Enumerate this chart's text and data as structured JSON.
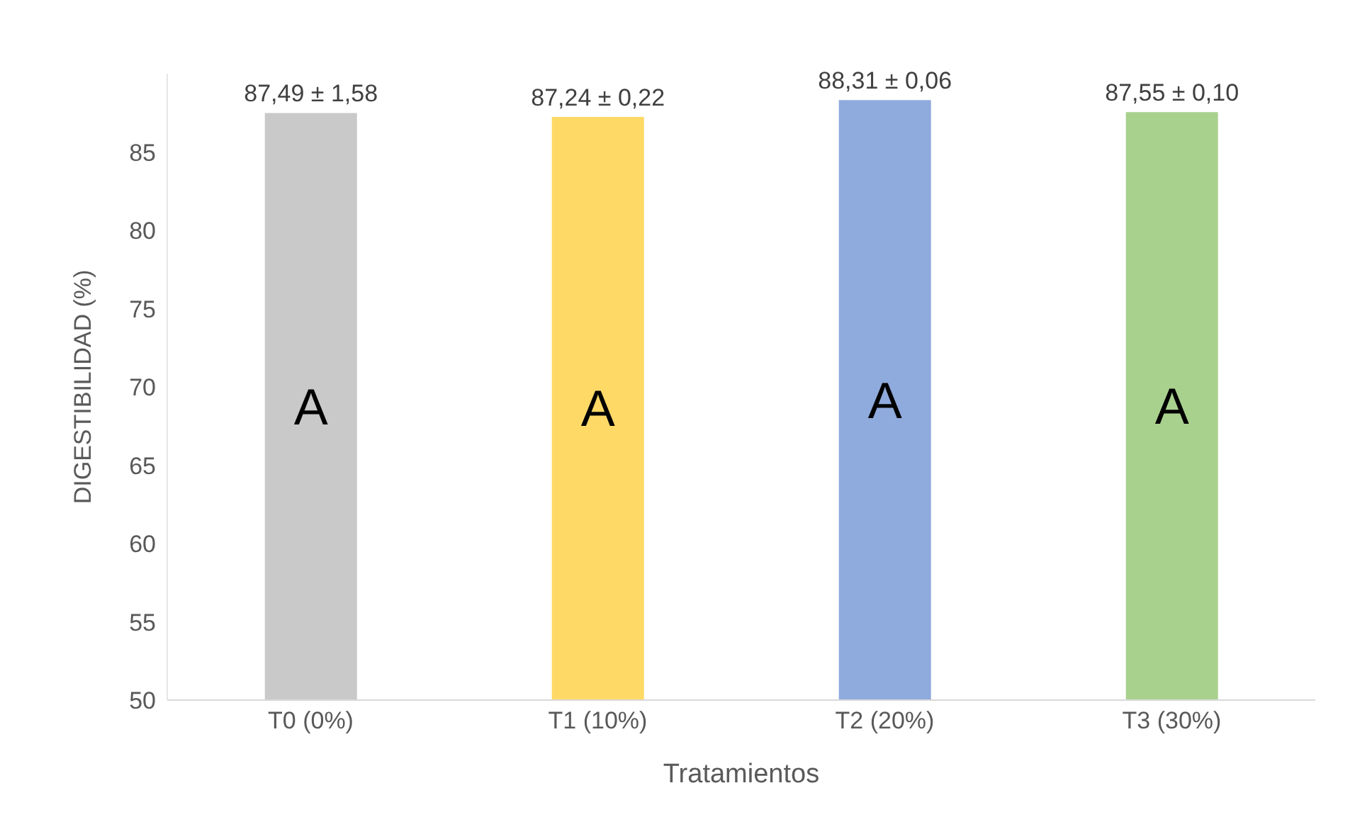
{
  "chart_data": {
    "type": "bar",
    "xlabel": "Tratamientos",
    "ylabel": "DIGESTIBILIDAD (%)",
    "categories": [
      "T0 (0%)",
      "T1 (10%)",
      "T2 (20%)",
      "T3 (30%)"
    ],
    "values": [
      87.49,
      87.24,
      88.31,
      87.55
    ],
    "colors": [
      "#c9c9c9",
      "#ffd966",
      "#8faadc",
      "#a9d18e"
    ],
    "value_labels": [
      "87,49 ± 1,58",
      "87,24 ± 0,22",
      "88,31 ± 0,06",
      "87,55 ± 0,10"
    ],
    "annotations": [
      "A",
      "A",
      "A",
      "A"
    ],
    "ylim": [
      50,
      90
    ],
    "yticks": [
      50,
      55,
      60,
      65,
      70,
      75,
      80,
      85
    ],
    "grid": false,
    "legend": false
  }
}
